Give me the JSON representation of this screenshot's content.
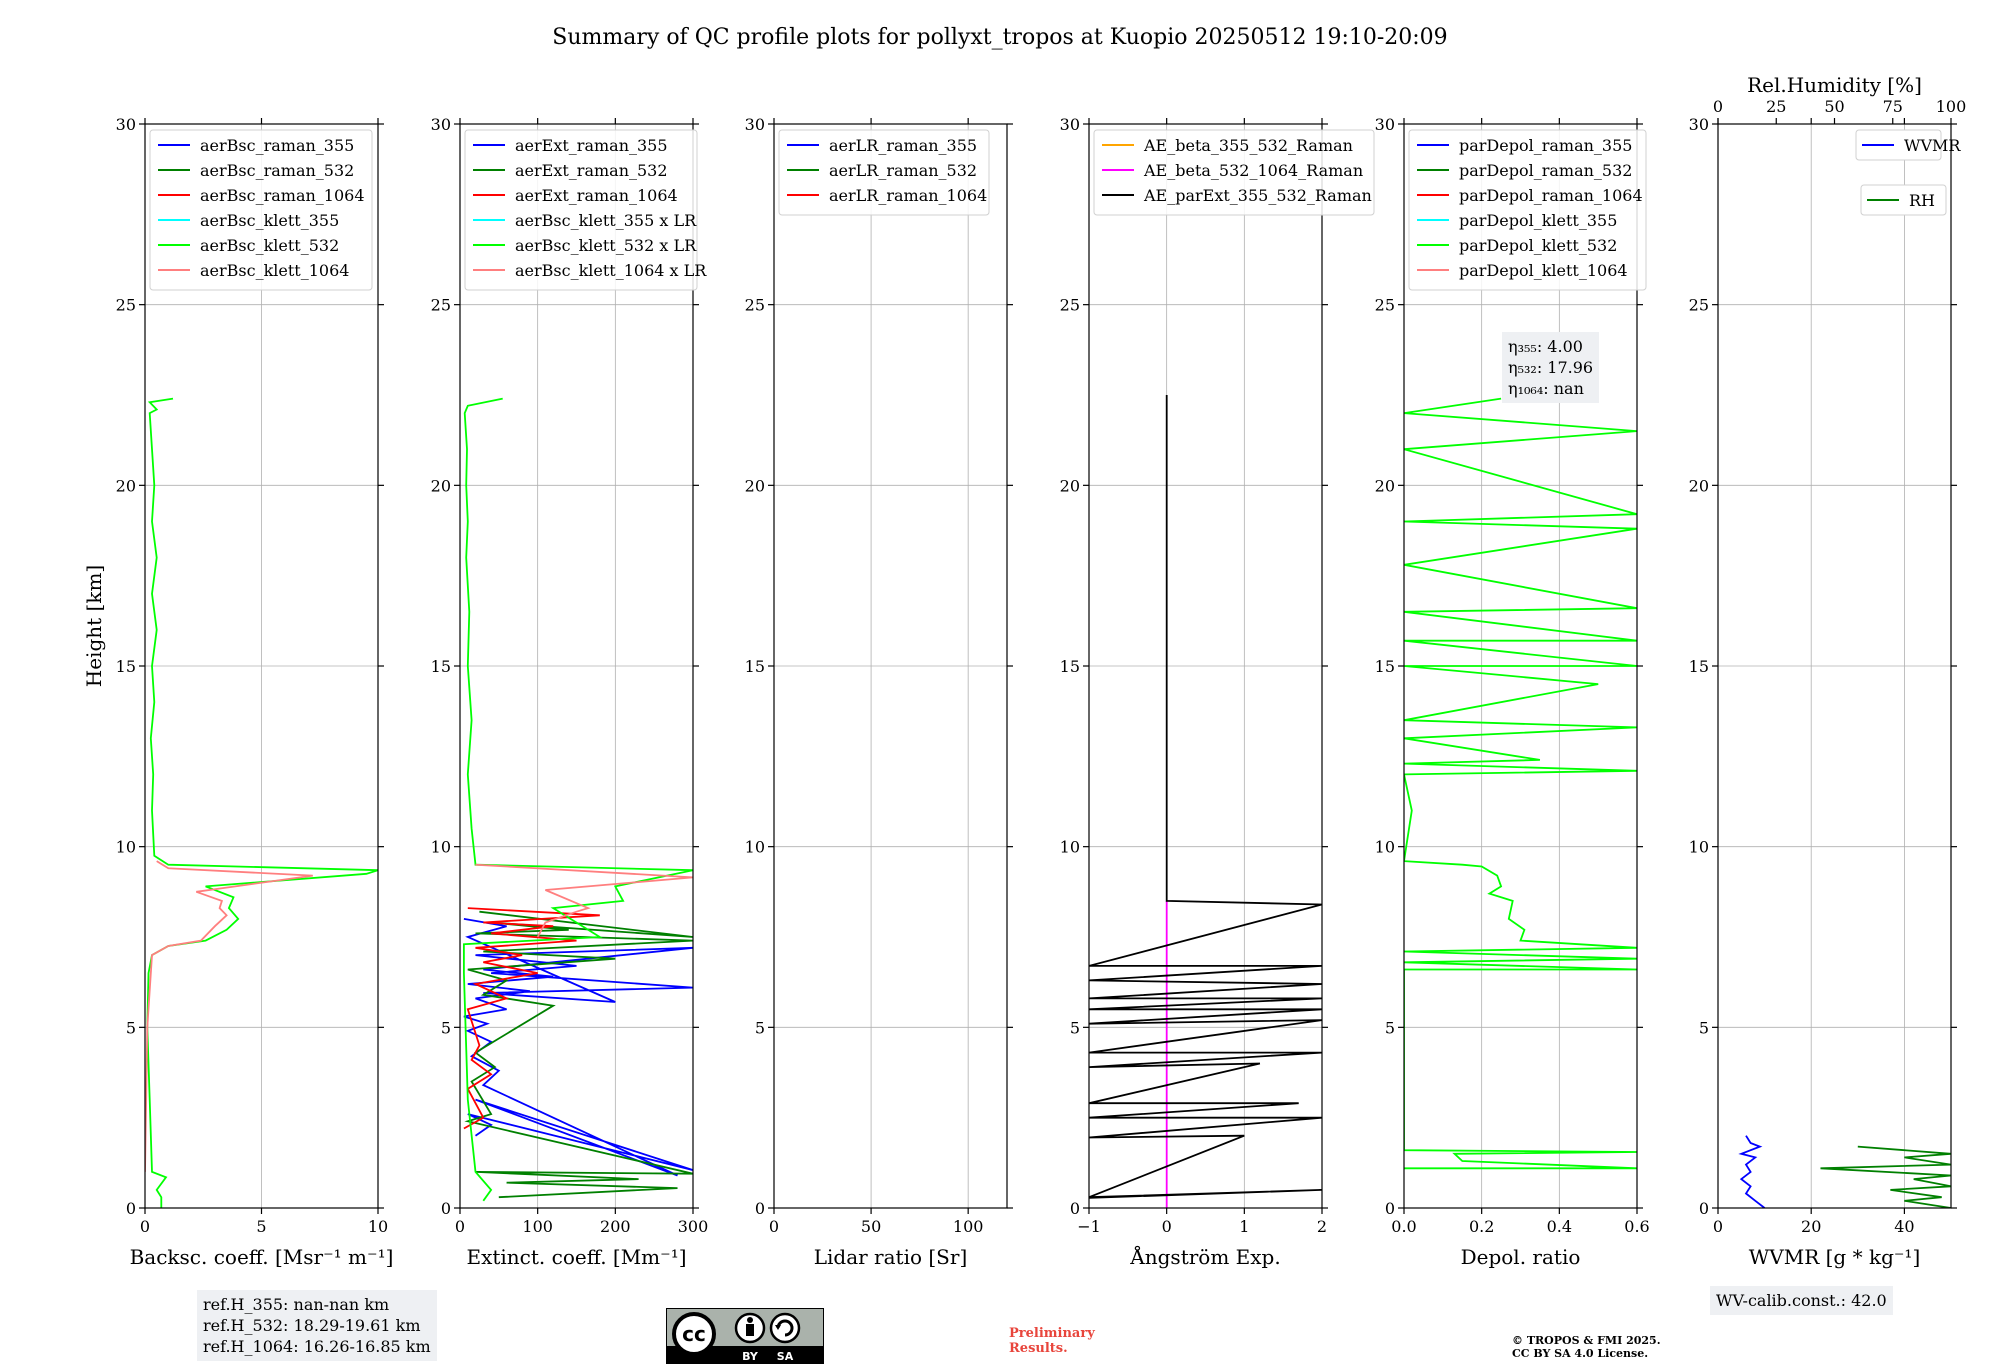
{
  "title": "Summary of QC profile plots for pollyxt_tropos at Kuopio 20250512 19:10-20:09",
  "ylabel": "Height [km]",
  "chart_data": [
    {
      "id": "bsc",
      "type": "line",
      "xlabel": "Backsc. coeff. [Msr⁻¹ m⁻¹]",
      "xlim": [
        0,
        10
      ],
      "ylim": [
        0,
        30
      ],
      "xticks": [
        0,
        5,
        10
      ],
      "yticks": [
        0,
        5,
        10,
        15,
        20,
        25,
        30
      ],
      "legend": [
        "aerBsc_raman_355",
        "aerBsc_raman_532",
        "aerBsc_raman_1064",
        "aerBsc_klett_355",
        "aerBsc_klett_532",
        "aerBsc_klett_1064"
      ],
      "legend_colors": [
        "#0000ff",
        "#008000",
        "#ff0000",
        "#00ffff",
        "#00ff00",
        "#ff7f7f"
      ],
      "series": [
        {
          "name": "aerBsc_klett_532",
          "color": "#00ff00",
          "x": [
            0.7,
            0.7,
            0.5,
            0.9,
            0.3,
            0.2,
            0.1,
            0.15,
            0.3,
            1.0,
            2.6,
            3.5,
            4.0,
            3.6,
            3.8,
            2.6,
            9.5,
            10,
            1.0,
            0.4,
            0.3,
            0.35,
            0.25,
            0.4,
            0.3,
            0.5,
            0.3,
            0.5,
            0.3,
            0.4,
            0.3,
            0.2,
            0.5,
            0.2,
            1.2
          ],
          "y": [
            0,
            0.3,
            0.5,
            0.85,
            1.0,
            3.0,
            5.0,
            6.5,
            7.0,
            7.25,
            7.4,
            7.7,
            8.0,
            8.3,
            8.6,
            8.9,
            9.25,
            9.35,
            9.5,
            9.75,
            11,
            12,
            13,
            14,
            15,
            16,
            17,
            18,
            19,
            20,
            21,
            22,
            22.1,
            22.3,
            22.4
          ]
        },
        {
          "name": "aerBsc_klett_1064",
          "color": "#ff7f7f",
          "x": [
            0.0,
            0.1,
            0.3,
            1.0,
            2.4,
            3.0,
            3.5,
            3.2,
            3.3,
            2.2,
            7.2,
            1.0,
            0.5
          ],
          "y": [
            1.0,
            5.0,
            7.0,
            7.25,
            7.4,
            7.8,
            8.1,
            8.3,
            8.5,
            8.75,
            9.2,
            9.4,
            9.6
          ]
        }
      ]
    },
    {
      "id": "ext",
      "type": "line",
      "xlabel": "Extinct. coeff. [Mm⁻¹]",
      "xlim": [
        0,
        300
      ],
      "ylim": [
        0,
        30
      ],
      "xticks": [
        0,
        100,
        200,
        300
      ],
      "yticks": [
        0,
        5,
        10,
        15,
        20,
        25,
        30
      ],
      "legend": [
        "aerExt_raman_355",
        "aerExt_raman_532",
        "aerExt_raman_1064",
        "aerBsc_klett_355 x LR",
        "aerBsc_klett_532 x LR",
        "aerBsc_klett_1064 x LR"
      ],
      "legend_colors": [
        "#0000ff",
        "#008000",
        "#ff0000",
        "#00ffff",
        "#00ff00",
        "#ff7f7f"
      ],
      "series": [
        {
          "name": "aerExt_raman_355",
          "color": "#0000ff",
          "x": [
            20,
            40,
            10,
            300,
            20,
            280,
            30,
            50,
            15,
            40,
            10,
            35,
            5,
            60,
            20,
            90,
            10,
            120,
            30,
            300,
            20,
            150,
            40,
            300,
            30,
            200,
            10,
            60,
            5
          ],
          "y": [
            2.0,
            2.3,
            2.6,
            1.05,
            3.0,
            0.9,
            3.4,
            3.8,
            4.2,
            4.6,
            4.9,
            5.1,
            5.3,
            5.5,
            5.8,
            6.0,
            6.2,
            6.4,
            6.6,
            7.2,
            7.0,
            6.7,
            6.5,
            6.1,
            5.95,
            5.7,
            7.5,
            7.8,
            8.0
          ]
        },
        {
          "name": "aerExt_raman_532",
          "color": "#008000",
          "x": [
            50,
            280,
            60,
            230,
            20,
            300,
            10,
            40,
            15,
            45,
            20,
            120,
            30,
            60,
            10,
            200,
            30,
            300,
            20,
            140,
            40,
            300,
            25
          ],
          "y": [
            0.3,
            0.55,
            0.7,
            0.8,
            1.0,
            0.95,
            2.4,
            2.6,
            3.5,
            3.9,
            4.3,
            5.6,
            5.9,
            6.3,
            6.6,
            6.9,
            7.1,
            7.4,
            7.6,
            7.7,
            7.9,
            7.5,
            8.2
          ]
        },
        {
          "name": "aerExt_raman_1064",
          "color": "#ff0000",
          "x": [
            5,
            30,
            10,
            40,
            15,
            25,
            10,
            60,
            20,
            100,
            30,
            80,
            20,
            150,
            40,
            120,
            30,
            180,
            10
          ],
          "y": [
            2.2,
            2.5,
            3.3,
            3.7,
            4.1,
            4.5,
            5.5,
            5.8,
            6.2,
            6.5,
            6.8,
            7.0,
            7.2,
            7.4,
            7.6,
            7.8,
            7.9,
            8.1,
            8.3
          ]
        },
        {
          "name": "aerBsc_klett_532 x LR",
          "color": "#00ff00",
          "x": [
            30,
            40,
            20,
            10,
            5,
            5,
            180,
            120,
            210,
            200,
            300,
            20,
            15,
            10,
            15,
            10,
            12,
            8,
            10,
            8,
            9,
            6,
            10,
            55
          ],
          "y": [
            0.2,
            0.5,
            1.0,
            3.0,
            6.5,
            7.3,
            7.5,
            8.3,
            8.5,
            8.9,
            9.35,
            9.5,
            10.5,
            12,
            13.5,
            15,
            16.5,
            18,
            19,
            20,
            21,
            22,
            22.2,
            22.4
          ]
        },
        {
          "name": "aerBsc_klett_1064 x LR",
          "color": "#ff7f7f",
          "x": [
            100,
            110,
            150,
            165,
            110,
            300,
            20
          ],
          "y": [
            7.5,
            7.9,
            8.2,
            8.3,
            8.8,
            9.15,
            9.5
          ]
        }
      ]
    },
    {
      "id": "lr",
      "type": "line",
      "xlabel": "Lidar ratio [Sr]",
      "xlim": [
        0,
        120
      ],
      "ylim": [
        0,
        30
      ],
      "xticks": [
        0,
        50,
        100
      ],
      "yticks": [
        0,
        5,
        10,
        15,
        20,
        25,
        30
      ],
      "legend": [
        "aerLR_raman_355",
        "aerLR_raman_532",
        "aerLR_raman_1064"
      ],
      "legend_colors": [
        "#0000ff",
        "#008000",
        "#ff0000"
      ],
      "series": []
    },
    {
      "id": "ae",
      "type": "line",
      "xlabel": "Ångström Exp.",
      "xlim": [
        -1,
        2
      ],
      "ylim": [
        0,
        30
      ],
      "xticks": [
        -1,
        0,
        1,
        2
      ],
      "yticks": [
        0,
        5,
        10,
        15,
        20,
        25,
        30
      ],
      "legend": [
        "AE_beta_355_532_Raman",
        "AE_beta_532_1064_Raman",
        "AE_parExt_355_532_Raman"
      ],
      "legend_colors": [
        "#ffa500",
        "#ff00ff",
        "#000000"
      ],
      "series": [
        {
          "name": "AE_beta_532_1064_Raman",
          "color": "#ff00ff",
          "x": [
            0,
            0
          ],
          "y": [
            0,
            8.5
          ]
        },
        {
          "name": "AE_parExt_355_532_Raman",
          "color": "#000000",
          "x": [
            0,
            0,
            2,
            -1,
            2,
            -1,
            2,
            -1,
            2,
            -1,
            2,
            -1,
            2,
            -1,
            2,
            -1,
            1.2,
            -1,
            1.7,
            -1,
            2,
            -1,
            1.0,
            -1,
            2,
            -1
          ],
          "y": [
            22.5,
            8.5,
            8.4,
            6.7,
            6.7,
            6.3,
            6.2,
            5.8,
            5.8,
            5.5,
            5.5,
            5.1,
            5.2,
            4.3,
            4.3,
            3.9,
            4.0,
            2.9,
            2.9,
            2.5,
            2.5,
            1.95,
            2.0,
            0.3,
            0.5,
            0.28
          ]
        }
      ]
    },
    {
      "id": "depol",
      "type": "line",
      "xlabel": "Depol. ratio",
      "xlim": [
        0,
        0.6
      ],
      "ylim": [
        0,
        30
      ],
      "xticks": [
        0.0,
        0.2,
        0.4,
        0.6
      ],
      "yticks": [
        0,
        5,
        10,
        15,
        20,
        25,
        30
      ],
      "legend": [
        "parDepol_raman_355",
        "parDepol_raman_532",
        "parDepol_raman_1064",
        "parDepol_klett_355",
        "parDepol_klett_532",
        "parDepol_klett_1064"
      ],
      "legend_colors": [
        "#0000ff",
        "#008000",
        "#ff0000",
        "#00ffff",
        "#00ff00",
        "#ff7f7f"
      ],
      "annotation": {
        "eta355": "η₃₅₅: 4.00",
        "eta532": "η₅₃₂: 17.96",
        "eta1064": "η₁₀₆₄: nan"
      },
      "series": [
        {
          "name": "parDepol_klett_532",
          "color": "#00ff00",
          "x": [
            0.0,
            0.6,
            0.15,
            0.13,
            0.6,
            0.0,
            0.0,
            0.6,
            0.0,
            0.6,
            0.0,
            0.6,
            0.3,
            0.31,
            0.27,
            0.28,
            0.22,
            0.25,
            0.24,
            0.2,
            0.15,
            0.0,
            0.02,
            0.0,
            0.6,
            0.0,
            0.35,
            0.0,
            0.6,
            0.0,
            0.5,
            0.0,
            0.6,
            0.0,
            0.6,
            0.0,
            0.6,
            0.0,
            0.6,
            0.0,
            0.6,
            0.0,
            0.6,
            0.0,
            0.25
          ],
          "y": [
            1.1,
            1.1,
            1.3,
            1.5,
            1.55,
            1.6,
            6.6,
            6.6,
            6.8,
            6.9,
            7.1,
            7.2,
            7.4,
            7.7,
            8.0,
            8.5,
            8.7,
            8.9,
            9.2,
            9.45,
            9.5,
            9.6,
            11,
            12,
            12.1,
            12.3,
            12.4,
            13,
            13.3,
            13.5,
            14.5,
            15,
            15.0,
            15.7,
            15.7,
            16.5,
            16.6,
            17.8,
            18.8,
            19.0,
            19.2,
            21.0,
            21.5,
            22.0,
            22.4
          ]
        }
      ]
    },
    {
      "id": "wv",
      "type": "line",
      "xlabel": "WVMR [g * kg⁻¹]",
      "top_xlabel": "Rel.Humidity [%]",
      "xlim": [
        0,
        50
      ],
      "ylim": [
        0,
        30
      ],
      "xticks": [
        0,
        20,
        40
      ],
      "top_xticks": [
        0,
        25,
        50,
        75,
        100
      ],
      "yticks": [
        0,
        5,
        10,
        15,
        20,
        25,
        30
      ],
      "legend": [
        "WVMR",
        "RH"
      ],
      "legend_colors": [
        "#0000ff",
        "#008000"
      ],
      "series": [
        {
          "name": "WVMR",
          "color": "#0000ff",
          "x": [
            10,
            8,
            6,
            7,
            5,
            7,
            6,
            8,
            5,
            9,
            7,
            6
          ],
          "y": [
            0,
            0.2,
            0.4,
            0.6,
            0.8,
            1.0,
            1.2,
            1.4,
            1.5,
            1.7,
            1.8,
            2.0
          ]
        },
        {
          "name": "RH",
          "color": "#008000",
          "x": [
            50,
            40,
            48,
            37,
            50,
            42,
            50,
            22,
            50,
            40,
            50,
            30
          ],
          "y": [
            0,
            0.2,
            0.3,
            0.5,
            0.6,
            0.8,
            0.9,
            1.1,
            1.2,
            1.4,
            1.5,
            1.7
          ]
        }
      ]
    }
  ],
  "info": {
    "refh_355": "ref.H_355: nan-nan km",
    "refh_532": "ref.H_532: 18.29-19.61 km",
    "refh_1064": "ref.H_1064: 16.26-16.85 km",
    "wv_calib": "WV-calib.const.: 42.0",
    "preliminary_1": "Preliminary",
    "preliminary_2": "Results.",
    "copyright_1": "© TROPOS & FMI 2025.",
    "copyright_2": "CC BY SA 4.0 License.",
    "cc_logo_text": "cc",
    "cc_by": "BY",
    "cc_sa": "SA"
  }
}
